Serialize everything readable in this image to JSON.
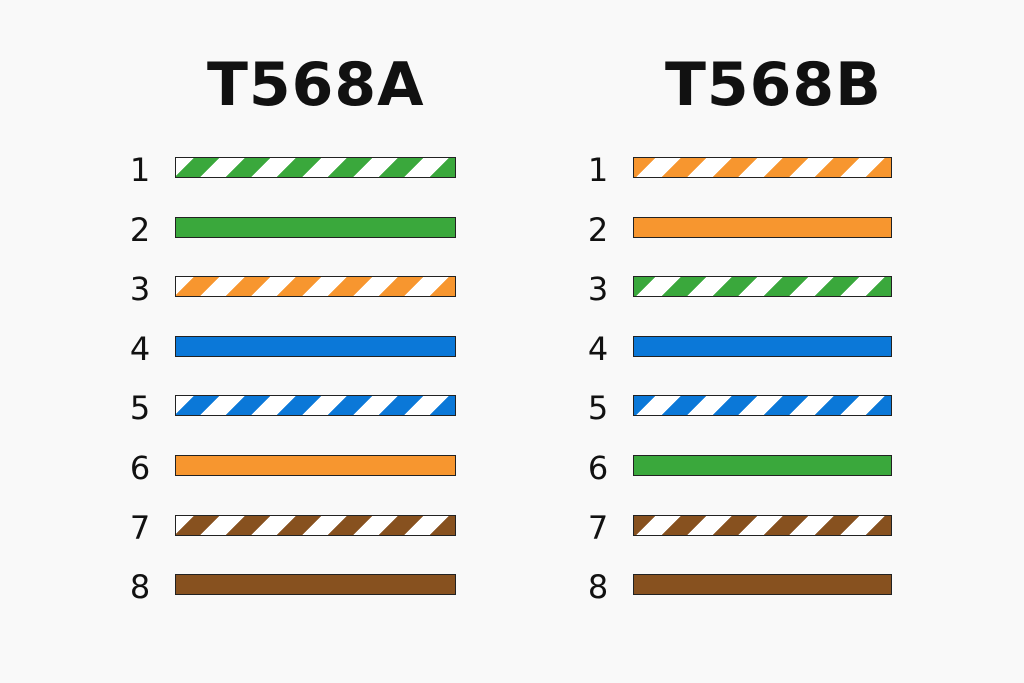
{
  "colors": {
    "green": "#3aa83c",
    "orange": "#f7962f",
    "blue": "#0b78d8",
    "brown": "#87511f",
    "white": "#ffffff"
  },
  "standards": [
    {
      "title": "T568A",
      "wires": [
        {
          "pin": "1",
          "color": "green",
          "striped": true
        },
        {
          "pin": "2",
          "color": "green",
          "striped": false
        },
        {
          "pin": "3",
          "color": "orange",
          "striped": true
        },
        {
          "pin": "4",
          "color": "blue",
          "striped": false
        },
        {
          "pin": "5",
          "color": "blue",
          "striped": true
        },
        {
          "pin": "6",
          "color": "orange",
          "striped": false
        },
        {
          "pin": "7",
          "color": "brown",
          "striped": true
        },
        {
          "pin": "8",
          "color": "brown",
          "striped": false
        }
      ]
    },
    {
      "title": "T568B",
      "wires": [
        {
          "pin": "1",
          "color": "orange",
          "striped": true
        },
        {
          "pin": "2",
          "color": "orange",
          "striped": false
        },
        {
          "pin": "3",
          "color": "green",
          "striped": true
        },
        {
          "pin": "4",
          "color": "blue",
          "striped": false
        },
        {
          "pin": "5",
          "color": "blue",
          "striped": true
        },
        {
          "pin": "6",
          "color": "green",
          "striped": false
        },
        {
          "pin": "7",
          "color": "brown",
          "striped": true
        },
        {
          "pin": "8",
          "color": "brown",
          "striped": false
        }
      ]
    }
  ]
}
